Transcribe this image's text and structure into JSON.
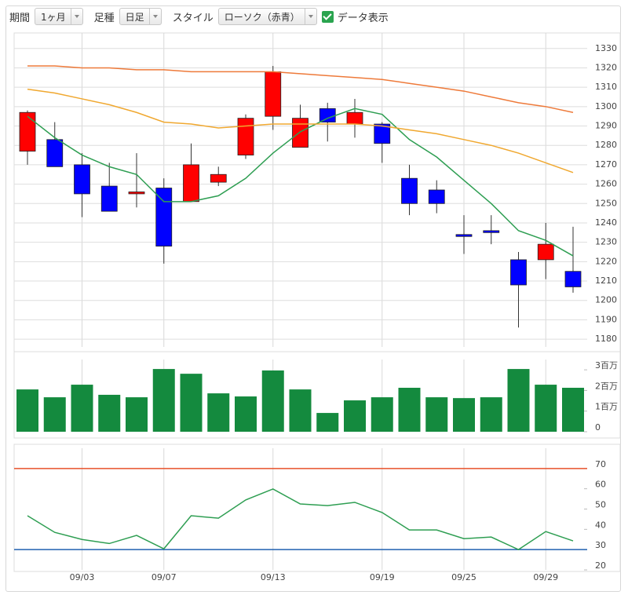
{
  "toolbar": {
    "period_label": "期間",
    "period": "1ヶ月",
    "bar_label": "足種",
    "bar": "日足",
    "style_label": "スタイル",
    "style": "ローソク（赤青）",
    "data_label": "データ表示"
  },
  "chart_data": [
    {
      "type": "candlestick",
      "categories": [
        null,
        null,
        "09/03",
        null,
        null,
        "09/07",
        null,
        null,
        null,
        "09/13",
        null,
        null,
        null,
        "09/19",
        null,
        null,
        "09/25",
        null,
        null,
        "09/29",
        null
      ],
      "open": [
        1277,
        1283,
        1270,
        1259,
        1255,
        1258,
        1251,
        1261,
        1275,
        1295,
        1279,
        1299,
        1291,
        1291,
        1263,
        1257,
        1234,
        1236,
        1221,
        1221,
        1215
      ],
      "high": [
        1298,
        1292,
        1276,
        1271,
        1276,
        1263,
        1281,
        1269,
        1296,
        1321,
        1301,
        1302,
        1304,
        1292,
        1270,
        1262,
        1244,
        1244,
        1225,
        1240,
        1238
      ],
      "low": [
        1270,
        1269,
        1243,
        1246,
        1248,
        1219,
        1251,
        1259,
        1273,
        1288,
        1279,
        1282,
        1284,
        1271,
        1244,
        1245,
        1224,
        1229,
        1186,
        1211,
        1204
      ],
      "close": [
        1297,
        1269,
        1255,
        1246,
        1256,
        1228,
        1270,
        1265,
        1294,
        1318,
        1294,
        1292,
        1297,
        1281,
        1250,
        1250,
        1233,
        1235,
        1208,
        1229,
        1207
      ],
      "up_color": "#ff0000",
      "down_color": "#0000ff",
      "series": [
        {
          "color": "#2e9e52",
          "values": [
            1295,
            1284,
            1275,
            1269,
            1265,
            1251,
            1251,
            1254,
            1263,
            1276,
            1287,
            1294,
            1299,
            1296,
            1283,
            1274,
            1262,
            1250,
            1236,
            1231,
            1223
          ]
        },
        {
          "color": "#f0a830",
          "values": [
            1309,
            1307,
            1304,
            1301,
            1297,
            1292,
            1291,
            1289,
            1290,
            1291,
            1291,
            1291,
            1291,
            1290,
            1288,
            1286,
            1283,
            1280,
            1276,
            1271,
            1266
          ]
        },
        {
          "color": "#ee7a3a",
          "values": [
            1321,
            1321,
            1320,
            1320,
            1319,
            1319,
            1318,
            1318,
            1318,
            1318,
            1317,
            1316,
            1315,
            1314,
            1312,
            1310,
            1308,
            1305,
            1302,
            1300,
            1297
          ]
        }
      ],
      "ylim": [
        1176,
        1338
      ],
      "yticks": [
        1180,
        1190,
        1200,
        1210,
        1220,
        1230,
        1240,
        1250,
        1260,
        1270,
        1280,
        1290,
        1300,
        1310,
        1320,
        1330
      ],
      "grid": true
    },
    {
      "type": "bar",
      "values": [
        2050000,
        1670000,
        2280000,
        1790000,
        1670000,
        3040000,
        2810000,
        1860000,
        1710000,
        2970000,
        2050000,
        910000,
        1520000,
        1670000,
        2130000,
        1670000,
        1630000,
        1670000,
        3040000,
        2280000,
        2130000
      ],
      "color": "#148a3e",
      "ylim": [
        0,
        3500000
      ],
      "yticks": [
        0,
        {
          "value": 1000000,
          "label": "1百万"
        },
        {
          "value": 2000000,
          "label": "2百万"
        },
        {
          "value": 3000000,
          "label": "3百万"
        }
      ],
      "grid": false
    },
    {
      "type": "line",
      "series": [
        {
          "color": "#2e9e52",
          "values": [
            46.7,
            38.5,
            35,
            33,
            37,
            30.4,
            46.7,
            45.5,
            54.5,
            59.9,
            52.5,
            51.7,
            53.3,
            48.3,
            39.7,
            39.7,
            35.4,
            36.2,
            30,
            38.9,
            34.3
          ]
        }
      ],
      "hlines": [
        {
          "value": 70,
          "color": "#e8502a"
        },
        {
          "value": 30,
          "color": "#2060b0"
        }
      ],
      "ylim": [
        20,
        80
      ],
      "yticks": [
        20,
        30,
        40,
        50,
        60,
        70
      ],
      "grid": false
    }
  ]
}
